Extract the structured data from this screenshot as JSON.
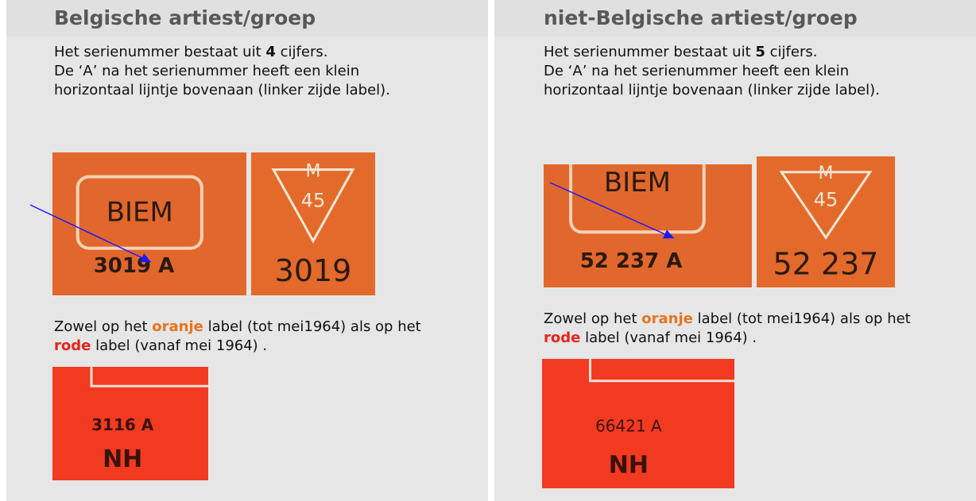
{
  "columns": [
    {
      "title": "Belgische artiest/groep",
      "line1": {
        "before": "Het serienummer bestaat uit",
        "digits": "4",
        "after": "cijfers."
      },
      "line2": "De ‘A’ na het serienummer heeft een klein horizontaal lijntje bovenaan (linker zijde label).",
      "photo1": {
        "box": "BIEM",
        "serial": "3019 A"
      },
      "photo2": {
        "mark": "M",
        "number": "45",
        "serial": "3019"
      },
      "note": {
        "t1": "Zowel op het",
        "orange": "oranje",
        "t2": "label (tot mei1964) als op het",
        "red": "rode",
        "t3": "label (vanaf mei 1964) ."
      },
      "photo3": {
        "serial": "3116 A",
        "code": "NH"
      }
    },
    {
      "title": "niet-Belgische artiest/groep",
      "line1": {
        "before": "Het serienummer bestaat uit",
        "digits": "5",
        "after": "cijfers."
      },
      "line2": "De ‘A’ na het serienummer heeft een klein horizontaal lijntje bovenaan (linker zijde label).",
      "photo1": {
        "box": "BIEM",
        "serial": "52 237 A"
      },
      "photo2": {
        "mark": "M",
        "number": "45",
        "serial": "52 237"
      },
      "note": {
        "t1": "Zowel op het",
        "orange": "oranje",
        "t2": "label (tot mei1964) als op het",
        "red": "rode",
        "t3": "label (vanaf mei 1964) ."
      },
      "photo3": {
        "serial": "66421  A",
        "code": "NH"
      }
    }
  ]
}
